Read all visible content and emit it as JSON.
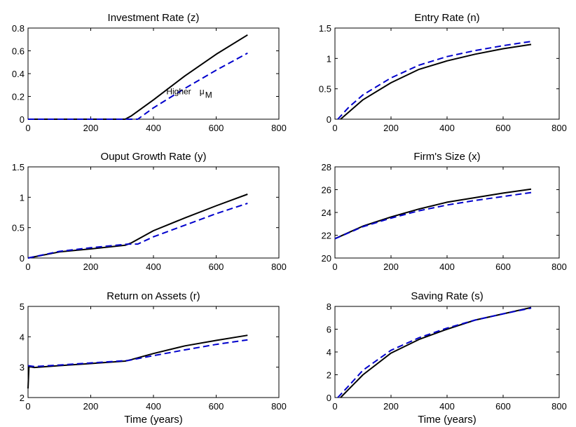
{
  "colors": {
    "series1": "#000000",
    "series2": "#0000cc"
  },
  "chart_data": [
    {
      "type": "line",
      "title": "Investment Rate (z)",
      "xlabel": "",
      "xlim": [
        0,
        800
      ],
      "ylim": [
        0,
        0.8
      ],
      "xticks": [
        0,
        200,
        400,
        600,
        800
      ],
      "yticks": [
        0,
        0.2,
        0.4,
        0.6,
        0.8
      ],
      "annotation": {
        "text": "Higher",
        "symbol": "μ",
        "subscript": "M",
        "x": 520,
        "y": 0.22
      },
      "series": [
        {
          "style": "solid",
          "x": [
            0,
            310,
            330,
            400,
            500,
            600,
            700
          ],
          "y": [
            0,
            0,
            0.03,
            0.17,
            0.38,
            0.57,
            0.74
          ]
        },
        {
          "style": "dashed",
          "x": [
            0,
            350,
            400,
            500,
            600,
            700
          ],
          "y": [
            0,
            0,
            0.1,
            0.27,
            0.43,
            0.58
          ]
        }
      ]
    },
    {
      "type": "line",
      "title": "Entry Rate (n)",
      "xlabel": "",
      "xlim": [
        0,
        800
      ],
      "ylim": [
        0,
        1.5
      ],
      "xticks": [
        0,
        200,
        400,
        600,
        800
      ],
      "yticks": [
        0,
        0.5,
        1,
        1.5
      ],
      "series": [
        {
          "style": "solid",
          "x": [
            20,
            50,
            100,
            200,
            300,
            400,
            500,
            600,
            700
          ],
          "y": [
            0,
            0.12,
            0.32,
            0.6,
            0.82,
            0.96,
            1.07,
            1.16,
            1.23
          ]
        },
        {
          "style": "dashed",
          "x": [
            10,
            50,
            100,
            200,
            300,
            400,
            500,
            600,
            700
          ],
          "y": [
            0,
            0.2,
            0.4,
            0.68,
            0.89,
            1.03,
            1.13,
            1.21,
            1.28
          ]
        }
      ]
    },
    {
      "type": "line",
      "title": "Ouput Growth Rate (y)",
      "xlabel": "",
      "xlim": [
        0,
        800
      ],
      "ylim": [
        0,
        1.5
      ],
      "xticks": [
        0,
        200,
        400,
        600,
        800
      ],
      "yticks": [
        0,
        0.5,
        1,
        1.5
      ],
      "series": [
        {
          "style": "solid",
          "x": [
            0,
            100,
            200,
            310,
            330,
            400,
            500,
            600,
            700
          ],
          "y": [
            0,
            0.1,
            0.15,
            0.21,
            0.25,
            0.45,
            0.66,
            0.86,
            1.05
          ]
        },
        {
          "style": "dashed",
          "x": [
            0,
            100,
            200,
            320,
            350,
            400,
            500,
            600,
            700
          ],
          "y": [
            0,
            0.11,
            0.17,
            0.23,
            0.23,
            0.35,
            0.54,
            0.73,
            0.9
          ]
        }
      ]
    },
    {
      "type": "line",
      "title": "Firm's Size (x)",
      "xlabel": "",
      "xlim": [
        0,
        800
      ],
      "ylim": [
        20,
        28
      ],
      "xticks": [
        0,
        200,
        400,
        600,
        800
      ],
      "yticks": [
        20,
        22,
        24,
        26,
        28
      ],
      "series": [
        {
          "style": "solid",
          "x": [
            0,
            100,
            200,
            300,
            400,
            500,
            600,
            700
          ],
          "y": [
            21.7,
            22.8,
            23.6,
            24.3,
            24.9,
            25.3,
            25.7,
            26.05
          ]
        },
        {
          "style": "dashed",
          "x": [
            0,
            100,
            200,
            300,
            400,
            500,
            600,
            700
          ],
          "y": [
            21.7,
            22.75,
            23.5,
            24.15,
            24.65,
            25.05,
            25.4,
            25.75
          ]
        }
      ]
    },
    {
      "type": "line",
      "title": "Return on Assets (r)",
      "xlabel": "Time (years)",
      "xlim": [
        0,
        800
      ],
      "ylim": [
        2,
        5
      ],
      "xticks": [
        0,
        200,
        400,
        600,
        800
      ],
      "yticks": [
        2,
        3,
        4,
        5
      ],
      "series": [
        {
          "style": "solid",
          "x": [
            0,
            3,
            20,
            100,
            200,
            310,
            330,
            400,
            500,
            600,
            700
          ],
          "y": [
            2.3,
            3.02,
            2.99,
            3.05,
            3.12,
            3.2,
            3.25,
            3.45,
            3.7,
            3.88,
            4.05
          ]
        },
        {
          "style": "dashed",
          "x": [
            0,
            20,
            100,
            200,
            320,
            400,
            500,
            600,
            700
          ],
          "y": [
            3.05,
            3.02,
            3.07,
            3.14,
            3.22,
            3.38,
            3.57,
            3.75,
            3.9
          ]
        }
      ]
    },
    {
      "type": "line",
      "title": "Saving Rate (s)",
      "xlabel": "Time (years)",
      "xlim": [
        0,
        800
      ],
      "ylim": [
        0,
        8
      ],
      "xticks": [
        0,
        200,
        400,
        600,
        800
      ],
      "yticks": [
        0,
        2,
        4,
        6,
        8
      ],
      "series": [
        {
          "style": "solid",
          "x": [
            20,
            50,
            100,
            200,
            300,
            400,
            500,
            600,
            700
          ],
          "y": [
            0,
            0.75,
            2.0,
            3.9,
            5.1,
            6.0,
            6.8,
            7.35,
            7.9
          ]
        },
        {
          "style": "dashed",
          "x": [
            10,
            50,
            100,
            200,
            300,
            400,
            500,
            600,
            700
          ],
          "y": [
            0,
            1.05,
            2.4,
            4.15,
            5.25,
            6.1,
            6.8,
            7.35,
            7.85
          ]
        }
      ]
    }
  ]
}
